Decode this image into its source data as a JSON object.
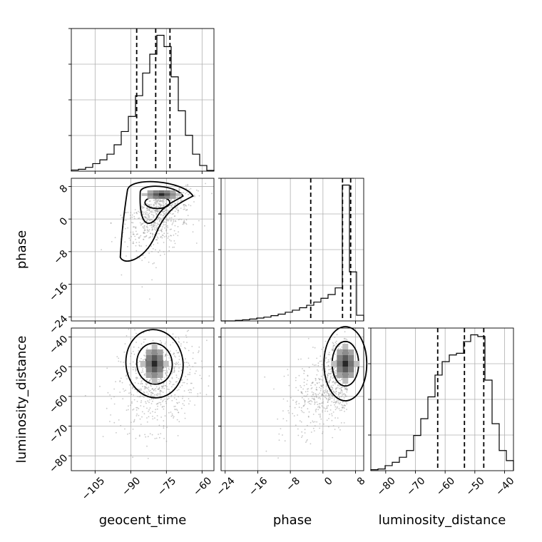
{
  "chart_data": {
    "type": "corner",
    "parameters": [
      {
        "name": "geocent_time",
        "label": "geocent_time",
        "range": [
          -115,
          -55
        ],
        "ticks": [
          -105,
          -90,
          -75,
          -60
        ]
      },
      {
        "name": "phase",
        "label": "phase",
        "range": [
          -25,
          10
        ],
        "ticks": [
          -24,
          -16,
          -8,
          0,
          8
        ]
      },
      {
        "name": "luminosity_distance",
        "label": "luminosity_distance",
        "range": [
          -85,
          -37
        ],
        "ticks": [
          -80,
          -70,
          -60,
          -50,
          -40
        ]
      }
    ],
    "histograms": [
      {
        "parameter": "geocent_time",
        "bin_edges": [
          -115,
          -112,
          -109,
          -106,
          -103,
          -100,
          -97,
          -94,
          -91,
          -88,
          -85,
          -82,
          -79,
          -76,
          -73,
          -70,
          -67,
          -64,
          -61,
          -58,
          -55
        ],
        "counts": [
          0.3,
          0.5,
          1,
          2,
          3,
          4.5,
          7,
          10.5,
          14.5,
          20,
          26,
          31,
          36,
          33,
          25,
          16,
          9.5,
          4.5,
          1.5,
          0.2
        ],
        "quantiles": [
          -87.5,
          -79.5,
          -73.5
        ]
      },
      {
        "parameter": "phase",
        "bin_edges": [
          -25,
          -23.25,
          -21.5,
          -19.75,
          -18,
          -16.25,
          -14.5,
          -12.75,
          -11,
          -9.25,
          -7.5,
          -5.75,
          -4,
          -2.25,
          -0.5,
          1.25,
          3,
          4.75,
          6.5,
          8.25,
          10
        ],
        "counts": [
          0,
          0,
          0.3,
          0.6,
          1,
          1.5,
          2,
          2.8,
          3.6,
          4.6,
          5.7,
          7,
          8.3,
          10,
          12,
          14,
          17.5,
          72,
          26,
          3
        ],
        "quantiles": [
          -3,
          4.8,
          6.8
        ]
      },
      {
        "parameter": "luminosity_distance",
        "bin_edges": [
          -85,
          -82.6,
          -80.2,
          -77.8,
          -75.4,
          -73,
          -70.6,
          -68.2,
          -65.8,
          -63.4,
          -61,
          -58.6,
          -56.2,
          -53.8,
          -51.4,
          -49,
          -46.6,
          -44.2,
          -41.8,
          -39.4,
          -37
        ],
        "counts": [
          0.3,
          0.5,
          1.5,
          2.5,
          4,
          6,
          10.5,
          15.5,
          22,
          28.5,
          32.5,
          34.5,
          35,
          38.5,
          40.5,
          40,
          27,
          14,
          6,
          3
        ],
        "quantiles": [
          -62.5,
          -53.5,
          -47
        ]
      }
    ],
    "scatter_panels": [
      {
        "x": "geocent_time",
        "y": "phase",
        "density_peak": [
          -77,
          6
        ]
      },
      {
        "x": "geocent_time",
        "y": "luminosity_distance",
        "density_peak": [
          -80,
          -49
        ]
      },
      {
        "x": "phase",
        "y": "luminosity_distance",
        "density_peak": [
          5.5,
          -49
        ]
      }
    ],
    "contour_levels": 3,
    "grid": true,
    "legend": "none"
  }
}
